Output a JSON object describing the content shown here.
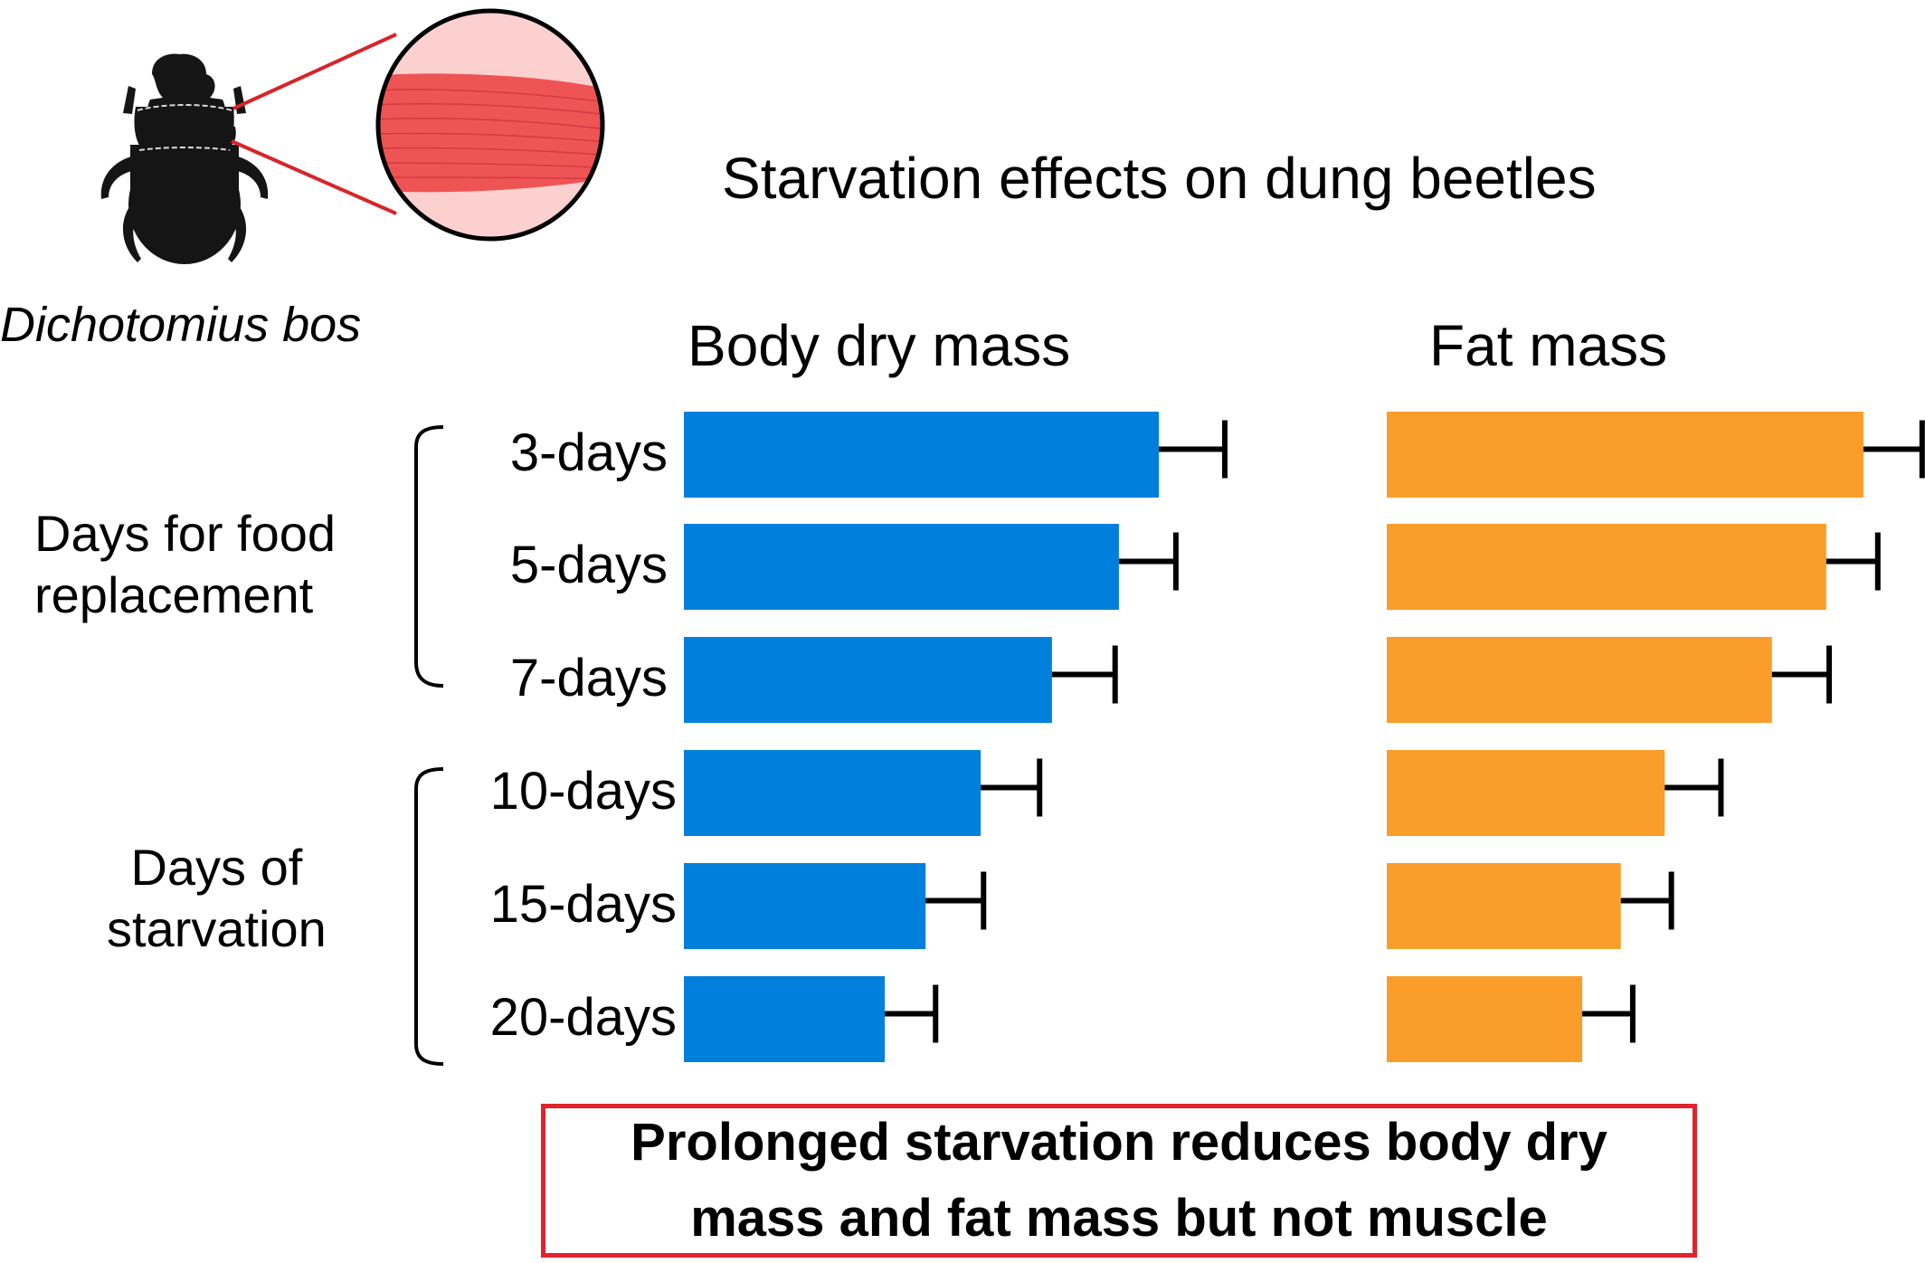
{
  "figure": {
    "title": "Starvation effects on dung beetles",
    "species": "Dichotomius bos",
    "illustration": {
      "beetle_icon": "beetle-silhouette",
      "magnified_icon": "muscle-fiber-closeup",
      "colors": {
        "muscle": "#ee5454",
        "muscle_light": "#fbd0ce",
        "callout_line": "#d8242a"
      }
    },
    "groups": [
      {
        "label_lines": [
          "Days for food",
          "replacement"
        ],
        "rows": [
          "3-days",
          "5-days",
          "7-days"
        ]
      },
      {
        "label_lines": [
          "Days of",
          "starvation"
        ],
        "rows": [
          "10-days",
          "15-days",
          "20-days"
        ]
      }
    ],
    "conclusion_lines": [
      "Prolonged starvation reduces body dry",
      "mass and fat mass but not muscle"
    ],
    "colors": {
      "body": "#0080dc",
      "fat": "#fa9d2a",
      "error": "#000000",
      "box_border": "#e3232c"
    }
  },
  "chart_data": {
    "type": "bar",
    "orientation": "horizontal",
    "title": "Starvation effects on dung beetles",
    "categories": [
      "3-days",
      "5-days",
      "7-days",
      "10-days",
      "15-days",
      "20-days"
    ],
    "units": "relative (3-days = 100); no axis shown",
    "xlim": [
      0,
      115
    ],
    "grid": false,
    "series": [
      {
        "name": "Body dry mass",
        "color": "#0080dc",
        "values": [
          100,
          91.6,
          77.5,
          62.5,
          50.9,
          42.3
        ],
        "errors": [
          13.9,
          12.0,
          13.3,
          12.4,
          12.2,
          10.7
        ]
      },
      {
        "name": "Fat mass",
        "color": "#fa9d2a",
        "values": [
          100,
          92.2,
          80.8,
          58.3,
          49.1,
          41.0
        ],
        "errors": [
          12.3,
          10.8,
          12.0,
          11.8,
          10.6,
          10.6
        ]
      }
    ]
  }
}
